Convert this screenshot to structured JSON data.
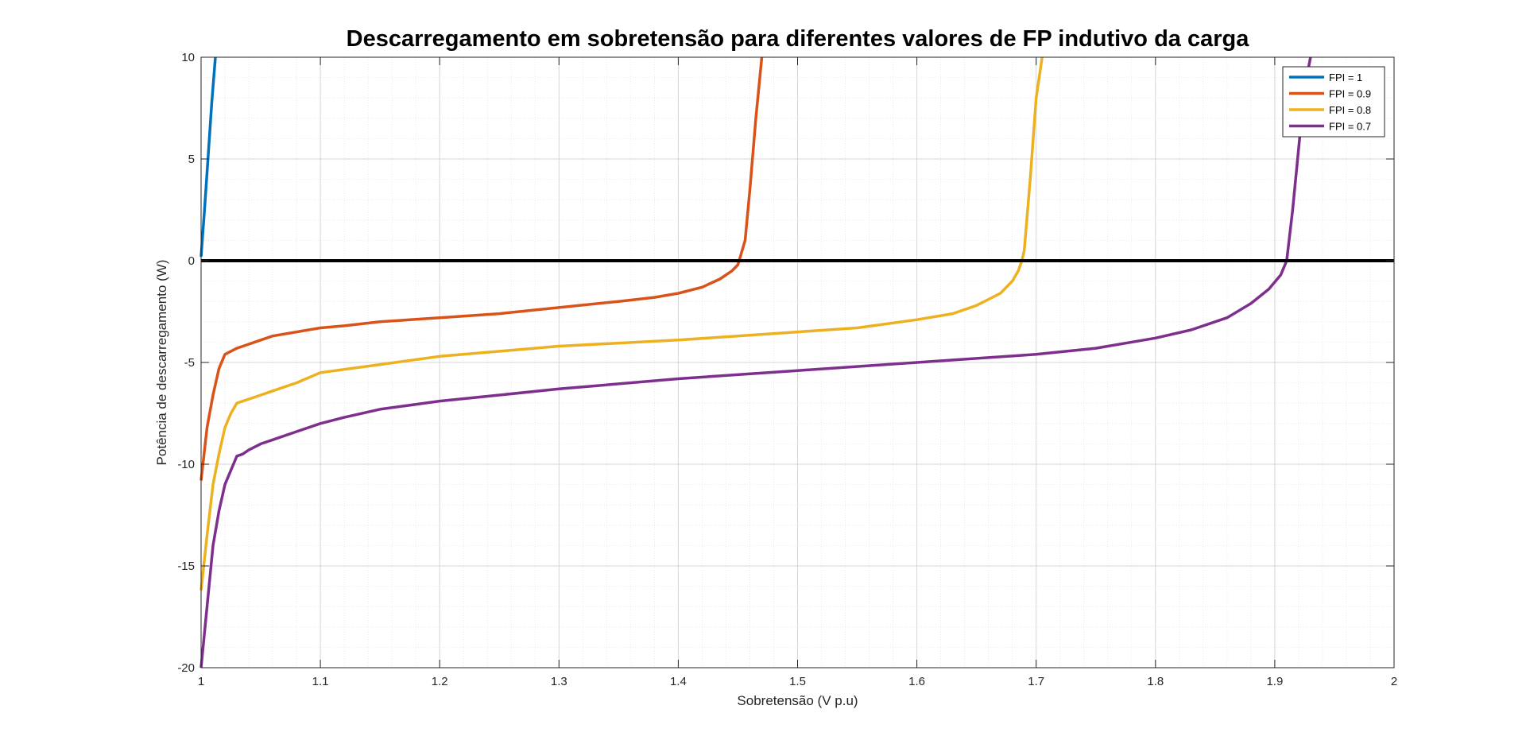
{
  "chart_data": {
    "type": "line",
    "title": "Descarregamento em sobretensão para diferentes valores de FP indutivo da carga",
    "xlabel": "Sobretensão (V p.u)",
    "ylabel": "Potência de descarregamento (W)",
    "xlim": [
      1,
      2
    ],
    "ylim": [
      -20,
      10
    ],
    "xticks": [
      1,
      1.1,
      1.2,
      1.3,
      1.4,
      1.5,
      1.6,
      1.7,
      1.8,
      1.9,
      2
    ],
    "xtick_labels": [
      "1",
      "1.1",
      "1.2",
      "1.3",
      "1.4",
      "1.5",
      "1.6",
      "1.7",
      "1.8",
      "1.9",
      "2"
    ],
    "yticks": [
      -20,
      -15,
      -10,
      -5,
      0,
      5,
      10
    ],
    "ytick_labels": [
      "-20",
      "-15",
      "-10",
      "-5",
      "0",
      "5",
      "10"
    ],
    "grid": true,
    "minor_grid": true,
    "legend_position": "top-right",
    "reference_line": {
      "y": 0,
      "color": "#000000"
    },
    "series": [
      {
        "name": "FPI = 1",
        "color": "#0072BD",
        "x": [
          1.0,
          1.003,
          1.006,
          1.009,
          1.012
        ],
        "y": [
          0.2,
          2.6,
          5.2,
          7.8,
          10.0
        ]
      },
      {
        "name": "FPI = 0.9",
        "color": "#D95319",
        "x": [
          1.0,
          1.005,
          1.01,
          1.015,
          1.02,
          1.03,
          1.04,
          1.05,
          1.06,
          1.08,
          1.1,
          1.12,
          1.15,
          1.2,
          1.25,
          1.3,
          1.35,
          1.38,
          1.4,
          1.42,
          1.435,
          1.445,
          1.45,
          1.452,
          1.456,
          1.46,
          1.465,
          1.47
        ],
        "y": [
          -10.8,
          -8.2,
          -6.6,
          -5.3,
          -4.6,
          -4.3,
          -4.1,
          -3.9,
          -3.7,
          -3.5,
          -3.3,
          -3.2,
          -3.0,
          -2.8,
          -2.6,
          -2.3,
          -2.0,
          -1.8,
          -1.6,
          -1.3,
          -0.9,
          -0.5,
          -0.2,
          0.2,
          1.0,
          3.5,
          7.0,
          10.0
        ]
      },
      {
        "name": "FPI = 0.8",
        "color": "#EDB120",
        "x": [
          1.0,
          1.005,
          1.01,
          1.015,
          1.02,
          1.025,
          1.03,
          1.04,
          1.05,
          1.06,
          1.08,
          1.1,
          1.15,
          1.2,
          1.3,
          1.4,
          1.5,
          1.55,
          1.6,
          1.63,
          1.65,
          1.67,
          1.68,
          1.685,
          1.688,
          1.69,
          1.695,
          1.7,
          1.705
        ],
        "y": [
          -16.2,
          -13.5,
          -11.0,
          -9.5,
          -8.2,
          -7.5,
          -7.0,
          -6.8,
          -6.6,
          -6.4,
          -6.0,
          -5.5,
          -5.1,
          -4.7,
          -4.2,
          -3.9,
          -3.5,
          -3.3,
          -2.9,
          -2.6,
          -2.2,
          -1.6,
          -1.0,
          -0.5,
          0.0,
          0.5,
          4.0,
          8.0,
          10.0
        ]
      },
      {
        "name": "FPI = 0.7",
        "color": "#7E2F8E",
        "x": [
          1.0,
          1.005,
          1.01,
          1.015,
          1.02,
          1.03,
          1.035,
          1.04,
          1.05,
          1.06,
          1.08,
          1.1,
          1.12,
          1.15,
          1.2,
          1.25,
          1.3,
          1.4,
          1.5,
          1.6,
          1.7,
          1.75,
          1.8,
          1.83,
          1.86,
          1.88,
          1.895,
          1.905,
          1.91,
          1.915,
          1.92,
          1.925,
          1.93
        ],
        "y": [
          -20.0,
          -17.0,
          -14.0,
          -12.3,
          -11.0,
          -9.6,
          -9.5,
          -9.3,
          -9.0,
          -8.8,
          -8.4,
          -8.0,
          -7.7,
          -7.3,
          -6.9,
          -6.6,
          -6.3,
          -5.8,
          -5.4,
          -5.0,
          -4.6,
          -4.3,
          -3.8,
          -3.4,
          -2.8,
          -2.1,
          -1.4,
          -0.7,
          0.0,
          2.5,
          5.5,
          8.5,
          10.0
        ]
      }
    ]
  }
}
